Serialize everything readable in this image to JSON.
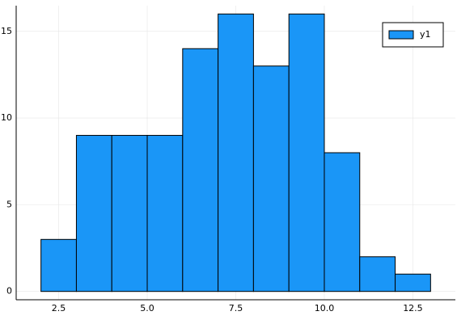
{
  "chart_data": {
    "type": "histogram",
    "bins": [
      2,
      3,
      4,
      5,
      6,
      7,
      8,
      9,
      10,
      11,
      12,
      13
    ],
    "series": [
      {
        "name": "y1",
        "color": "#1a96f7",
        "values": [
          3,
          9,
          9,
          9,
          14,
          16,
          13,
          16,
          8,
          2,
          1
        ]
      }
    ],
    "xlim": [
      1.3,
      13.7
    ],
    "ylim": [
      -0.48,
      16.48
    ],
    "xticks": [
      2.5,
      {
        "value": 5,
        "label": "5.0"
      },
      7.5,
      {
        "value": 10,
        "label": "10.0"
      },
      12.5
    ],
    "yticks": [
      0,
      5,
      10,
      15
    ],
    "grid": true,
    "legend": "top-right"
  }
}
